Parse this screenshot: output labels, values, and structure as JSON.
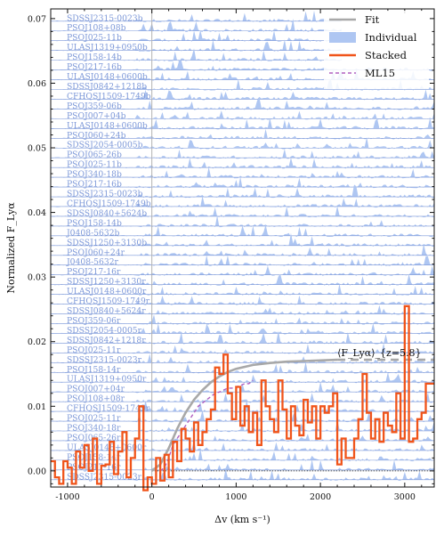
{
  "chart_data": {
    "type": "line",
    "xlabel": "Δv (km s⁻¹)",
    "ylabel": "Normalized F_Lyα",
    "xlim": [
      -1200,
      3350
    ],
    "ylim": [
      -0.0025,
      0.0715
    ],
    "xticks": [
      -1000,
      0,
      1000,
      2000,
      3000
    ],
    "yticks": [
      0.0,
      0.01,
      0.02,
      0.03,
      0.04,
      0.05,
      0.06,
      0.07
    ],
    "ytick_labels": [
      "0.00",
      "0.01",
      "0.02",
      "0.03",
      "0.04",
      "0.05",
      "0.06",
      "0.07"
    ],
    "grid": false,
    "legend_position": "top-right",
    "legend": [
      {
        "label": "Fit",
        "style": "thick-gray-line"
      },
      {
        "label": "Individual",
        "style": "blue-patch"
      },
      {
        "label": "Stacked",
        "style": "orange-step"
      },
      {
        "label": "ML15",
        "style": "purple-dashed"
      }
    ],
    "annotation": "⟨F_Lyα⟩_{z=5.8}",
    "annotation_y": 0.0172,
    "individual_labels": [
      "SDSSJ2315-0023b",
      "PSOJ108+08b",
      "PSOJ025-11b",
      "ULASJ1319+0950b",
      "PSOJ158-14b",
      "PSOJ217-16b",
      "ULASJ0148+0600b",
      "SDSSJ0842+1218b",
      "CFHQSJ1509-1749b",
      "PSOJ359-06b",
      "PSOJ007+04b",
      "ULASJ0148+0600b",
      "PSOJ060+24b",
      "SDSSJ2054-0005b",
      "PSOJ065-26b",
      "PSOJ025-11b",
      "PSOJ340-18b",
      "PSOJ217-16b",
      "SDSSJ2315-0023b",
      "CFHQSJ1509-1749b",
      "SDSSJ0840+5624b",
      "PSOJ158-14b",
      "J0408-5632b",
      "SDSSJ1250+3130b",
      "PSOJ060+24r",
      "J0408-5632r",
      "PSOJ217-16r",
      "SDSSJ1250+3130r",
      "ULASJ0148+0600r",
      "CFHQSJ1509-1749r",
      "SDSSJ0840+5624r",
      "PSOJ359-06r",
      "SDSSJ2054-0005r",
      "SDSSJ0842+1218r",
      "PSOJ025-11r",
      "SDSSJ2315-0023r",
      "PSOJ158-14r",
      "ULASJ1319+0950r",
      "PSOJ007+04r",
      "PSOJ108+08r",
      "CFHQSJ1509-1749r",
      "PSOJ025-11r",
      "PSOJ340-18r",
      "PSOJ065-26r",
      "ULASJ0148+0600r",
      "PSOJ158-14r",
      "PSOJ217-16r",
      "SDSSJ2315-0023r"
    ],
    "individual_baseline_first": 0.0696,
    "individual_baseline_step": 0.00151,
    "stacked": {
      "name": "Stacked",
      "x": [
        -1200,
        -1150,
        -1100,
        -1050,
        -1000,
        -950,
        -900,
        -850,
        -800,
        -750,
        -700,
        -650,
        -600,
        -550,
        -500,
        -450,
        -400,
        -350,
        -300,
        -250,
        -200,
        -150,
        -100,
        -50,
        0,
        50,
        100,
        150,
        200,
        250,
        300,
        350,
        400,
        450,
        500,
        550,
        600,
        650,
        700,
        750,
        800,
        850,
        900,
        950,
        1000,
        1050,
        1100,
        1150,
        1200,
        1250,
        1300,
        1350,
        1400,
        1450,
        1500,
        1550,
        1600,
        1650,
        1700,
        1750,
        1800,
        1850,
        1900,
        1950,
        2000,
        2050,
        2100,
        2150,
        2200,
        2250,
        2300,
        2350,
        2400,
        2450,
        2500,
        2550,
        2600,
        2650,
        2700,
        2750,
        2800,
        2850,
        2900,
        2950,
        3000,
        3050,
        3100,
        3150,
        3200,
        3250,
        3300
      ],
      "y": [
        0.0015,
        -0.001,
        -0.002,
        0.0015,
        0.0005,
        -0.002,
        0.003,
        0.0005,
        0.004,
        0.0,
        0.005,
        -0.002,
        0.0008,
        0.001,
        0.0045,
        -0.0005,
        0.003,
        0.006,
        -0.001,
        0.002,
        0.005,
        0.01,
        -0.003,
        -0.001,
        -0.002,
        0.002,
        -0.0015,
        0.0025,
        -0.001,
        0.0045,
        0.0015,
        0.0065,
        0.005,
        0.003,
        0.0075,
        0.004,
        0.006,
        0.008,
        0.0095,
        0.016,
        0.015,
        0.018,
        0.012,
        0.008,
        0.013,
        0.007,
        0.01,
        0.006,
        0.009,
        0.004,
        0.014,
        0.01,
        0.008,
        0.006,
        0.014,
        0.0095,
        0.005,
        0.01,
        0.007,
        0.0055,
        0.011,
        0.0075,
        0.01,
        0.005,
        0.01,
        0.009,
        0.01,
        0.012,
        0.001,
        0.005,
        0.002,
        0.002,
        0.005,
        0.008,
        0.015,
        0.009,
        0.005,
        0.008,
        0.0045,
        0.009,
        0.007,
        0.006,
        0.012,
        0.005,
        0.0255,
        0.0045,
        0.005,
        0.008,
        0.009,
        0.0135,
        0.0135
      ]
    },
    "fit": {
      "name": "Fit",
      "x": [
        0,
        100,
        200,
        300,
        400,
        500,
        600,
        700,
        800,
        900,
        1000,
        1200,
        1400,
        1600,
        1800,
        2000,
        2200
      ],
      "y": [
        0.0,
        0.001,
        0.0035,
        0.0065,
        0.009,
        0.011,
        0.0125,
        0.0137,
        0.0146,
        0.0153,
        0.0158,
        0.0164,
        0.0167,
        0.0169,
        0.017,
        0.0171,
        0.0172
      ],
      "x_dashed": [
        2200,
        2400,
        2600,
        2800,
        3000,
        3200,
        3350
      ],
      "y_dashed": [
        0.0172,
        0.0172,
        0.0172,
        0.0172,
        0.0172,
        0.0172,
        0.0172
      ]
    },
    "ml15": {
      "name": "ML15",
      "x": [
        100,
        150,
        200,
        250,
        300,
        350,
        400,
        450,
        500,
        550,
        600,
        650,
        700,
        750,
        800,
        850,
        900,
        950,
        1000,
        1050,
        1100,
        1150,
        1200
      ],
      "y": [
        0.0,
        0.0005,
        0.002,
        0.004,
        0.005,
        0.006,
        0.007,
        0.008,
        0.009,
        0.01,
        0.0105,
        0.011,
        0.0115,
        0.012,
        0.0122,
        0.0125,
        0.0128,
        0.0128,
        0.013,
        0.0132,
        0.0135,
        0.0135,
        0.014
      ]
    },
    "colors": {
      "individual": "#aec6f2",
      "individual_line": "#7d98d8",
      "stacked": "#f0541a",
      "fit": "#a8a8a8",
      "ml15": "#b060c0",
      "refline": "#b0b0b0"
    }
  }
}
